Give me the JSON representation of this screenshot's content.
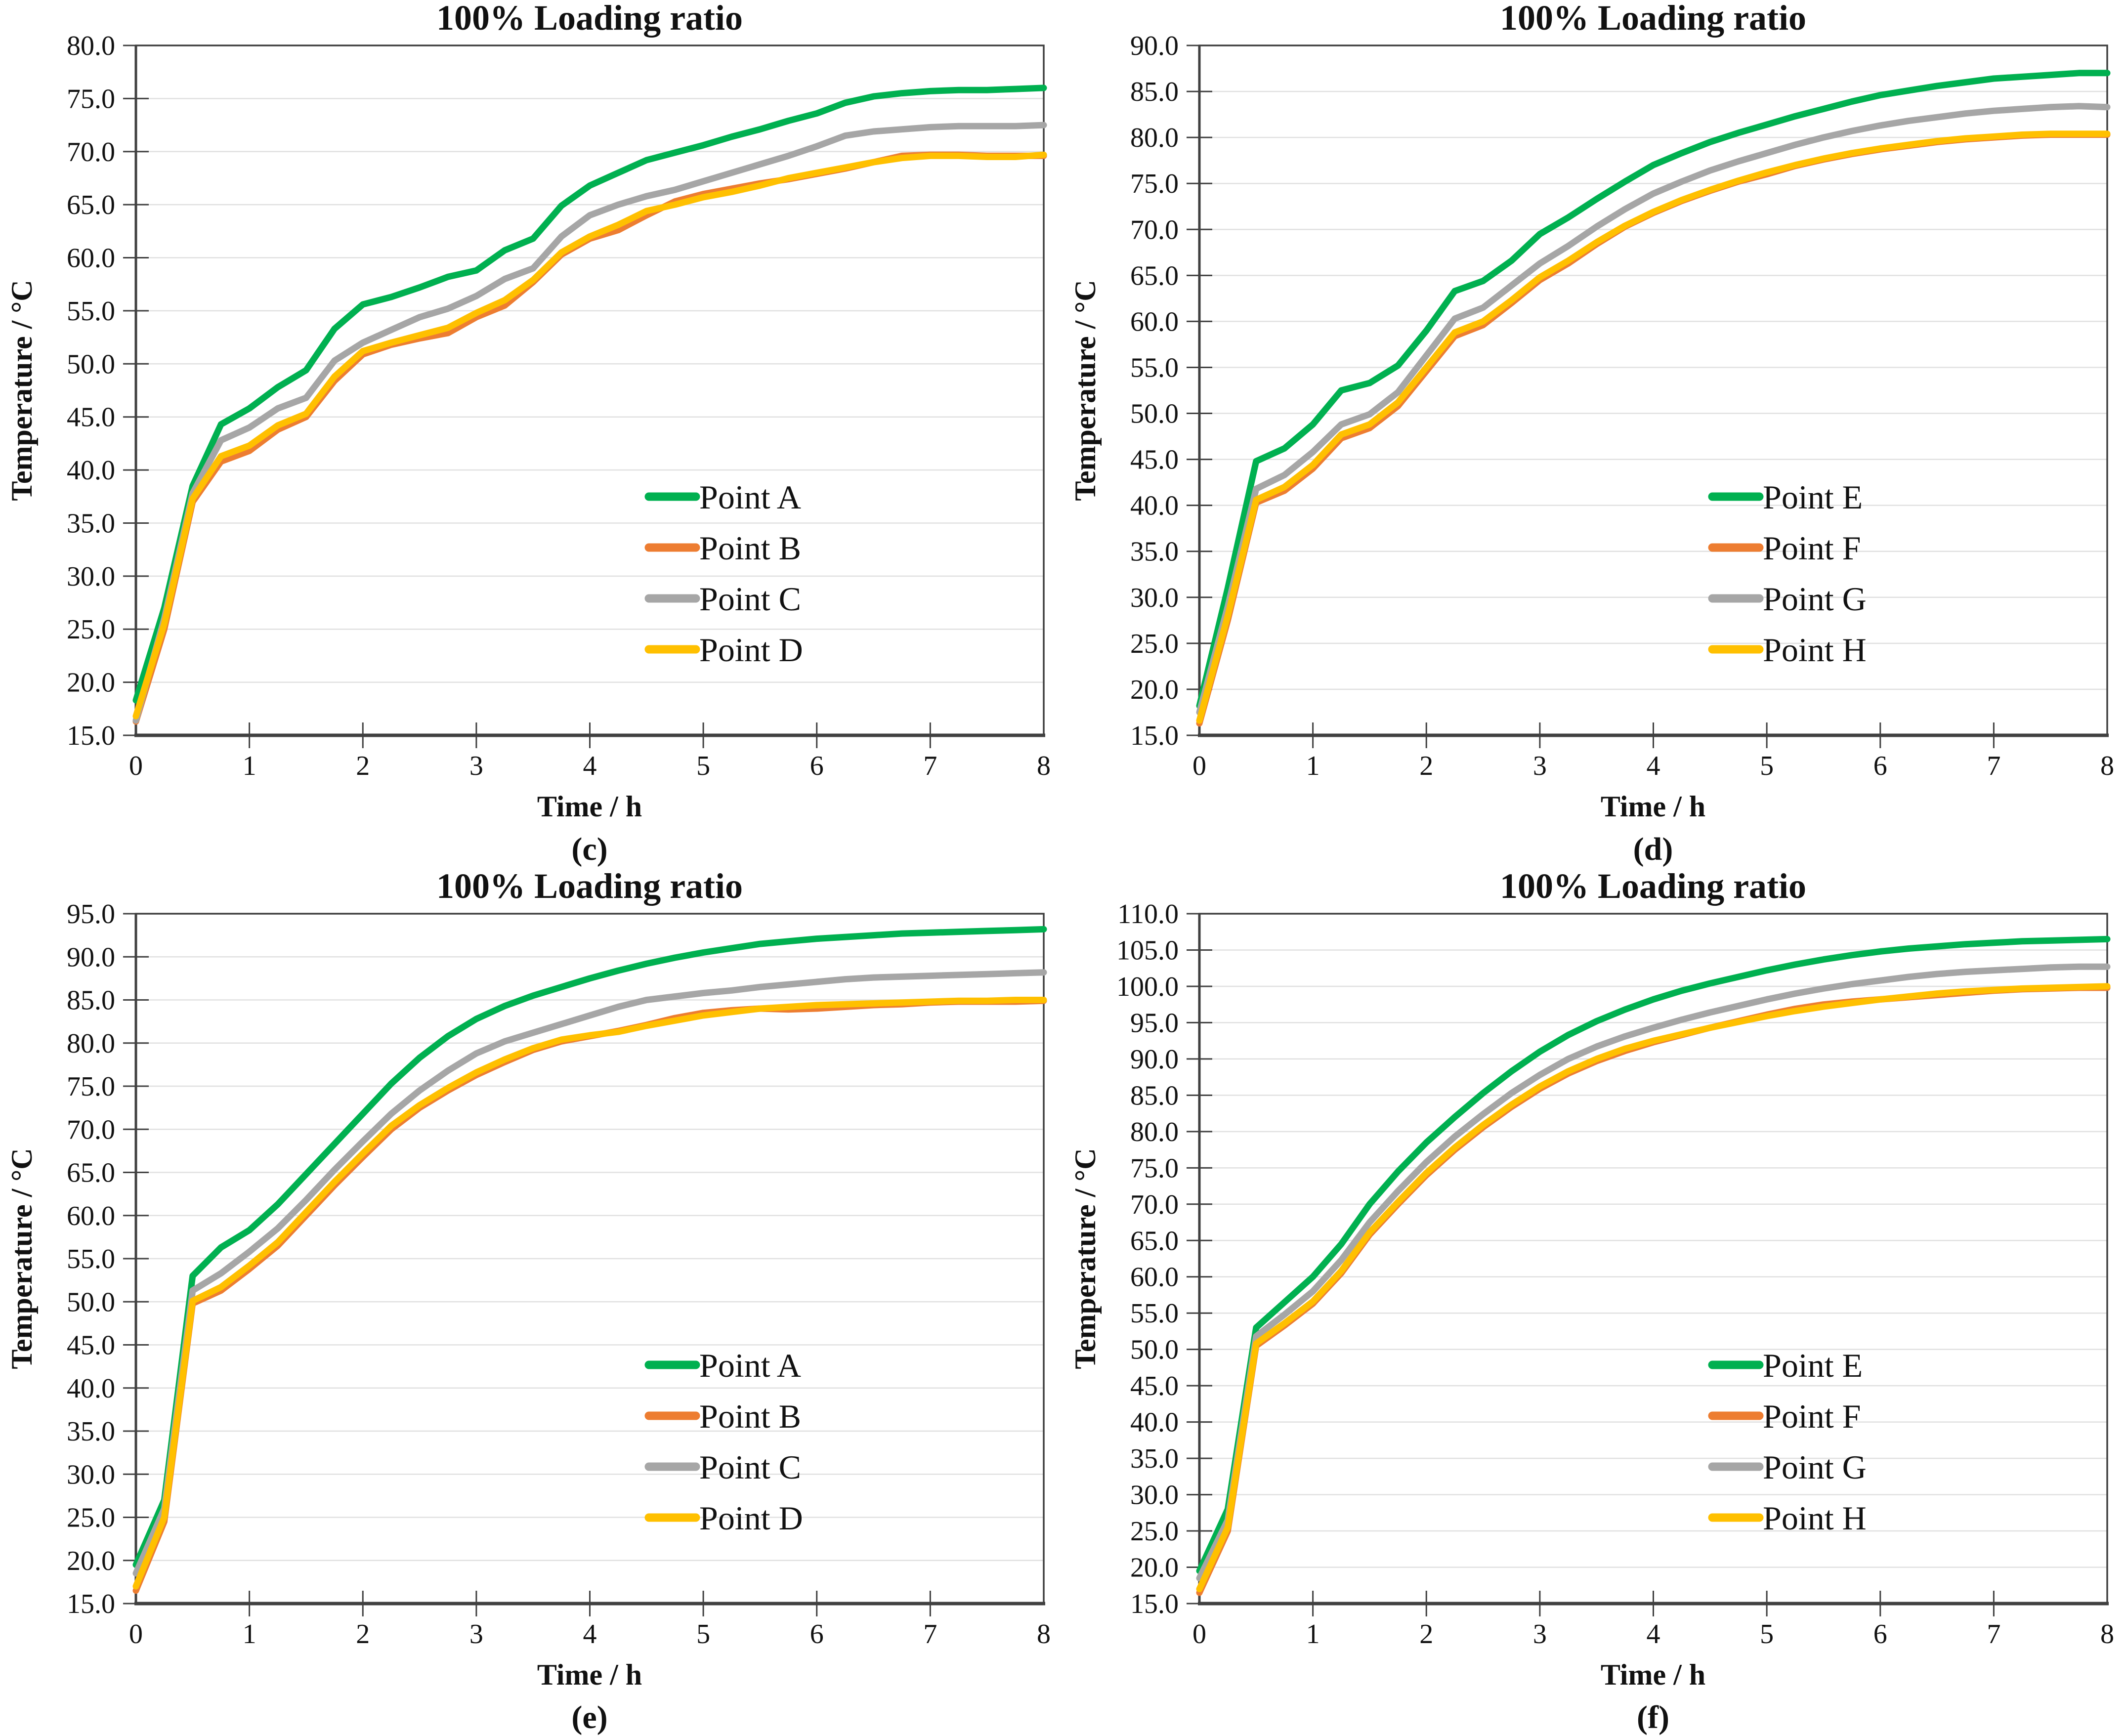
{
  "figure_title": "100% Loading ratio figure panels",
  "chart_data": [
    {
      "panel": "c",
      "caption": "(c)",
      "type": "line",
      "title": "100% Loading ratio",
      "xlabel": "Time / h",
      "ylabel": "Temperature / °C",
      "xlim": [
        0,
        8
      ],
      "ylim": [
        15,
        80
      ],
      "xtick_step": 1,
      "ytick_step": 5,
      "x_start": 0,
      "x_step": 0.25,
      "grid": "horizontal",
      "legend_position": "inside-right",
      "series": [
        {
          "name": "Point A",
          "color": "#00B050",
          "values": [
            18.3,
            27.0,
            38.5,
            44.3,
            45.8,
            47.8,
            49.4,
            53.3,
            55.6,
            56.3,
            57.2,
            58.2,
            58.8,
            60.7,
            61.8,
            64.9,
            66.8,
            68.0,
            69.2,
            69.9,
            70.6,
            71.4,
            72.1,
            72.9,
            73.6,
            74.6,
            75.2,
            75.5,
            75.7,
            75.8,
            75.8,
            75.9,
            76.0
          ]
        },
        {
          "name": "Point B",
          "color": "#ED7D31",
          "values": [
            16.3,
            25.0,
            37.0,
            40.8,
            41.8,
            43.8,
            45.0,
            48.4,
            50.9,
            51.8,
            52.4,
            52.9,
            54.4,
            55.5,
            57.7,
            60.3,
            61.8,
            62.6,
            64.0,
            65.3,
            66.0,
            66.5,
            67.0,
            67.4,
            67.9,
            68.4,
            69.0,
            69.6,
            69.7,
            69.7,
            69.6,
            69.6,
            69.6
          ]
        },
        {
          "name": "Point C",
          "color": "#A6A6A6",
          "values": [
            16.4,
            26.0,
            37.8,
            42.8,
            44.0,
            45.8,
            46.8,
            50.3,
            52.0,
            53.2,
            54.4,
            55.2,
            56.4,
            58.0,
            59.0,
            62.0,
            64.0,
            65.0,
            65.8,
            66.4,
            67.2,
            68.0,
            68.8,
            69.6,
            70.5,
            71.5,
            71.9,
            72.1,
            72.3,
            72.4,
            72.4,
            72.4,
            72.5
          ]
        },
        {
          "name": "Point D",
          "color": "#FFC000",
          "values": [
            16.8,
            25.5,
            37.3,
            41.3,
            42.3,
            44.2,
            45.3,
            48.8,
            51.2,
            52.0,
            52.7,
            53.4,
            54.8,
            56.0,
            57.9,
            60.5,
            62.0,
            63.1,
            64.4,
            65.0,
            65.7,
            66.2,
            66.8,
            67.5,
            68.0,
            68.5,
            69.0,
            69.4,
            69.6,
            69.6,
            69.5,
            69.5,
            69.7
          ]
        }
      ]
    },
    {
      "panel": "d",
      "caption": "(d)",
      "type": "line",
      "title": "100% Loading ratio",
      "xlabel": "Time / h",
      "ylabel": "Temperature / °C",
      "xlim": [
        0,
        8
      ],
      "ylim": [
        15,
        90
      ],
      "xtick_step": 1,
      "ytick_step": 5,
      "x_start": 0,
      "x_step": 0.25,
      "grid": "horizontal",
      "legend_position": "inside-right",
      "series": [
        {
          "name": "Point E",
          "color": "#00B050",
          "values": [
            18.2,
            31.0,
            44.8,
            46.2,
            48.8,
            52.5,
            53.3,
            55.2,
            59.0,
            63.3,
            64.4,
            66.6,
            69.5,
            71.3,
            73.3,
            75.2,
            77.0,
            78.3,
            79.5,
            80.5,
            81.4,
            82.3,
            83.1,
            83.9,
            84.6,
            85.1,
            85.6,
            86.0,
            86.4,
            86.6,
            86.8,
            87.0,
            87.0
          ]
        },
        {
          "name": "Point F",
          "color": "#ED7D31",
          "values": [
            16.3,
            27.5,
            40.3,
            41.6,
            44.0,
            47.3,
            48.4,
            50.8,
            54.6,
            58.4,
            59.6,
            62.0,
            64.5,
            66.3,
            68.4,
            70.3,
            71.8,
            73.1,
            74.2,
            75.2,
            76.0,
            76.9,
            77.6,
            78.2,
            78.7,
            79.1,
            79.5,
            79.8,
            80.0,
            80.2,
            80.3,
            80.3,
            80.3
          ]
        },
        {
          "name": "Point G",
          "color": "#A6A6A6",
          "values": [
            17.5,
            29.0,
            41.8,
            43.3,
            45.8,
            48.8,
            49.9,
            52.3,
            56.3,
            60.3,
            61.5,
            63.9,
            66.3,
            68.2,
            70.3,
            72.2,
            73.9,
            75.2,
            76.4,
            77.4,
            78.3,
            79.2,
            80.0,
            80.7,
            81.3,
            81.8,
            82.2,
            82.6,
            82.9,
            83.1,
            83.3,
            83.4,
            83.3
          ]
        },
        {
          "name": "Point H",
          "color": "#FFC000",
          "values": [
            16.6,
            28.0,
            40.6,
            42.0,
            44.4,
            47.7,
            48.8,
            51.2,
            55.0,
            58.8,
            60.0,
            62.3,
            64.8,
            66.6,
            68.6,
            70.4,
            71.9,
            73.2,
            74.3,
            75.3,
            76.2,
            77.0,
            77.7,
            78.3,
            78.8,
            79.2,
            79.6,
            79.9,
            80.1,
            80.3,
            80.4,
            80.4,
            80.4
          ]
        }
      ]
    },
    {
      "panel": "e",
      "caption": "(e)",
      "type": "line",
      "title": "100% Loading ratio",
      "xlabel": "Time / h",
      "ylabel": "Temperature / °C",
      "xlim": [
        0,
        8
      ],
      "ylim": [
        15,
        95
      ],
      "xtick_step": 1,
      "ytick_step": 5,
      "x_start": 0,
      "x_step": 0.25,
      "grid": "horizontal",
      "legend_position": "inside-right",
      "series": [
        {
          "name": "Point A",
          "color": "#00B050",
          "values": [
            19.5,
            27.0,
            53.0,
            56.3,
            58.3,
            61.3,
            64.8,
            68.3,
            71.8,
            75.3,
            78.3,
            80.8,
            82.8,
            84.3,
            85.5,
            86.5,
            87.5,
            88.4,
            89.2,
            89.9,
            90.5,
            91.0,
            91.5,
            91.8,
            92.1,
            92.3,
            92.5,
            92.7,
            92.8,
            92.9,
            93.0,
            93.1,
            93.2
          ]
        },
        {
          "name": "Point B",
          "color": "#ED7D31",
          "values": [
            16.5,
            24.5,
            49.8,
            51.3,
            53.8,
            56.5,
            60.0,
            63.5,
            66.8,
            70.0,
            72.5,
            74.5,
            76.3,
            77.8,
            79.2,
            80.2,
            80.8,
            81.4,
            82.1,
            82.9,
            83.5,
            83.8,
            84.0,
            83.9,
            84.0,
            84.2,
            84.4,
            84.5,
            84.7,
            84.8,
            84.8,
            84.8,
            84.9
          ]
        },
        {
          "name": "Point C",
          "color": "#A6A6A6",
          "values": [
            18.5,
            26.0,
            51.3,
            53.3,
            55.8,
            58.5,
            61.8,
            65.3,
            68.6,
            71.8,
            74.5,
            76.8,
            78.8,
            80.2,
            81.2,
            82.2,
            83.2,
            84.2,
            85.0,
            85.4,
            85.8,
            86.1,
            86.5,
            86.8,
            87.1,
            87.4,
            87.6,
            87.7,
            87.8,
            87.9,
            88.0,
            88.1,
            88.2
          ]
        },
        {
          "name": "Point D",
          "color": "#FFC000",
          "values": [
            17.0,
            25.0,
            50.1,
            51.7,
            54.2,
            56.9,
            60.4,
            63.9,
            67.2,
            70.4,
            72.8,
            74.8,
            76.6,
            78.1,
            79.4,
            80.4,
            80.9,
            81.3,
            82.0,
            82.6,
            83.2,
            83.6,
            84.0,
            84.2,
            84.4,
            84.5,
            84.6,
            84.7,
            84.8,
            84.9,
            84.9,
            85.0,
            85.0
          ]
        }
      ]
    },
    {
      "panel": "f",
      "caption": "(f)",
      "type": "line",
      "title": "100% Loading ratio",
      "xlabel": "Time / h",
      "ylabel": "Temperature / °C",
      "xlim": [
        0,
        8
      ],
      "ylim": [
        15,
        110
      ],
      "xtick_step": 1,
      "ytick_step": 5,
      "x_start": 0,
      "x_step": 0.25,
      "grid": "horizontal",
      "legend_position": "inside-right",
      "series": [
        {
          "name": "Point E",
          "color": "#00B050",
          "values": [
            19.5,
            28.0,
            53.0,
            56.5,
            60.0,
            64.5,
            70.0,
            74.5,
            78.5,
            82.0,
            85.3,
            88.3,
            91.0,
            93.3,
            95.2,
            96.8,
            98.2,
            99.4,
            100.4,
            101.3,
            102.2,
            103.0,
            103.7,
            104.3,
            104.8,
            105.2,
            105.5,
            105.8,
            106.0,
            106.2,
            106.3,
            106.4,
            106.5
          ]
        },
        {
          "name": "Point F",
          "color": "#ED7D31",
          "values": [
            16.5,
            25.0,
            50.5,
            53.3,
            56.3,
            60.5,
            65.8,
            70.0,
            74.0,
            77.5,
            80.6,
            83.4,
            85.9,
            88.0,
            89.7,
            91.1,
            92.3,
            93.3,
            94.3,
            95.2,
            96.1,
            96.9,
            97.5,
            97.9,
            98.2,
            98.5,
            98.8,
            99.1,
            99.4,
            99.6,
            99.7,
            99.8,
            99.8
          ]
        },
        {
          "name": "Point G",
          "color": "#A6A6A6",
          "values": [
            18.5,
            26.5,
            51.8,
            54.8,
            58.0,
            62.3,
            67.5,
            71.8,
            75.8,
            79.3,
            82.4,
            85.3,
            87.8,
            90.0,
            91.7,
            93.1,
            94.3,
            95.4,
            96.4,
            97.3,
            98.2,
            99.0,
            99.7,
            100.3,
            100.8,
            101.3,
            101.7,
            102.0,
            102.2,
            102.4,
            102.6,
            102.7,
            102.7
          ]
        },
        {
          "name": "Point H",
          "color": "#FFC000",
          "values": [
            17.0,
            25.5,
            50.8,
            53.6,
            56.6,
            60.8,
            66.1,
            70.3,
            74.3,
            77.8,
            80.9,
            83.7,
            86.2,
            88.3,
            90.0,
            91.4,
            92.5,
            93.4,
            94.3,
            95.1,
            95.9,
            96.6,
            97.2,
            97.7,
            98.2,
            98.6,
            99.0,
            99.3,
            99.5,
            99.7,
            99.8,
            99.9,
            100.0
          ]
        }
      ]
    }
  ],
  "style_colors": {
    "grid_line": "#e0e0e0",
    "axis_line": "#404040",
    "text": "#111111"
  }
}
